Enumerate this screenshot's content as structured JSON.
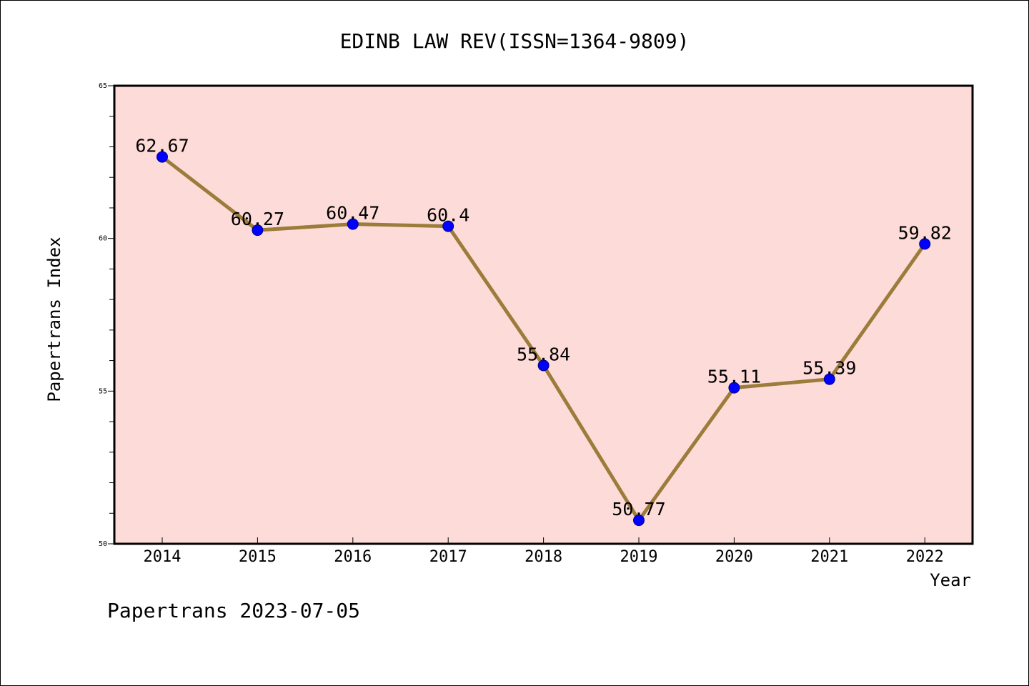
{
  "footer": "Papertrans 2023-07-05",
  "colors": {
    "plot_background": "#fddbd8",
    "line": "#9b7c3a",
    "marker_fill": "#0000ff",
    "marker_stroke": "#00008b",
    "axes": "#000000"
  },
  "chart_data": {
    "type": "line",
    "title": "EDINB LAW REV(ISSN=1364-9809)",
    "xlabel": "Year",
    "ylabel": "Papertrans Index",
    "categories": [
      "2014",
      "2015",
      "2016",
      "2017",
      "2018",
      "2019",
      "2020",
      "2021",
      "2022"
    ],
    "series": [
      {
        "values": [
          62.67,
          60.27,
          60.47,
          60.4,
          55.84,
          50.77,
          55.11,
          55.39,
          59.82
        ],
        "labels": [
          "62.67",
          "60.27",
          "60.47",
          "60.4",
          "55.84",
          "50.77",
          "55.11",
          "55.39",
          "59.82"
        ]
      }
    ],
    "ylim": [
      50,
      65
    ],
    "yticks": [
      50,
      55,
      60,
      65
    ],
    "yticklabels": [
      "50",
      "55",
      "60",
      "65"
    ],
    "y_minor_step": 1,
    "grid": false,
    "legend": "none"
  }
}
